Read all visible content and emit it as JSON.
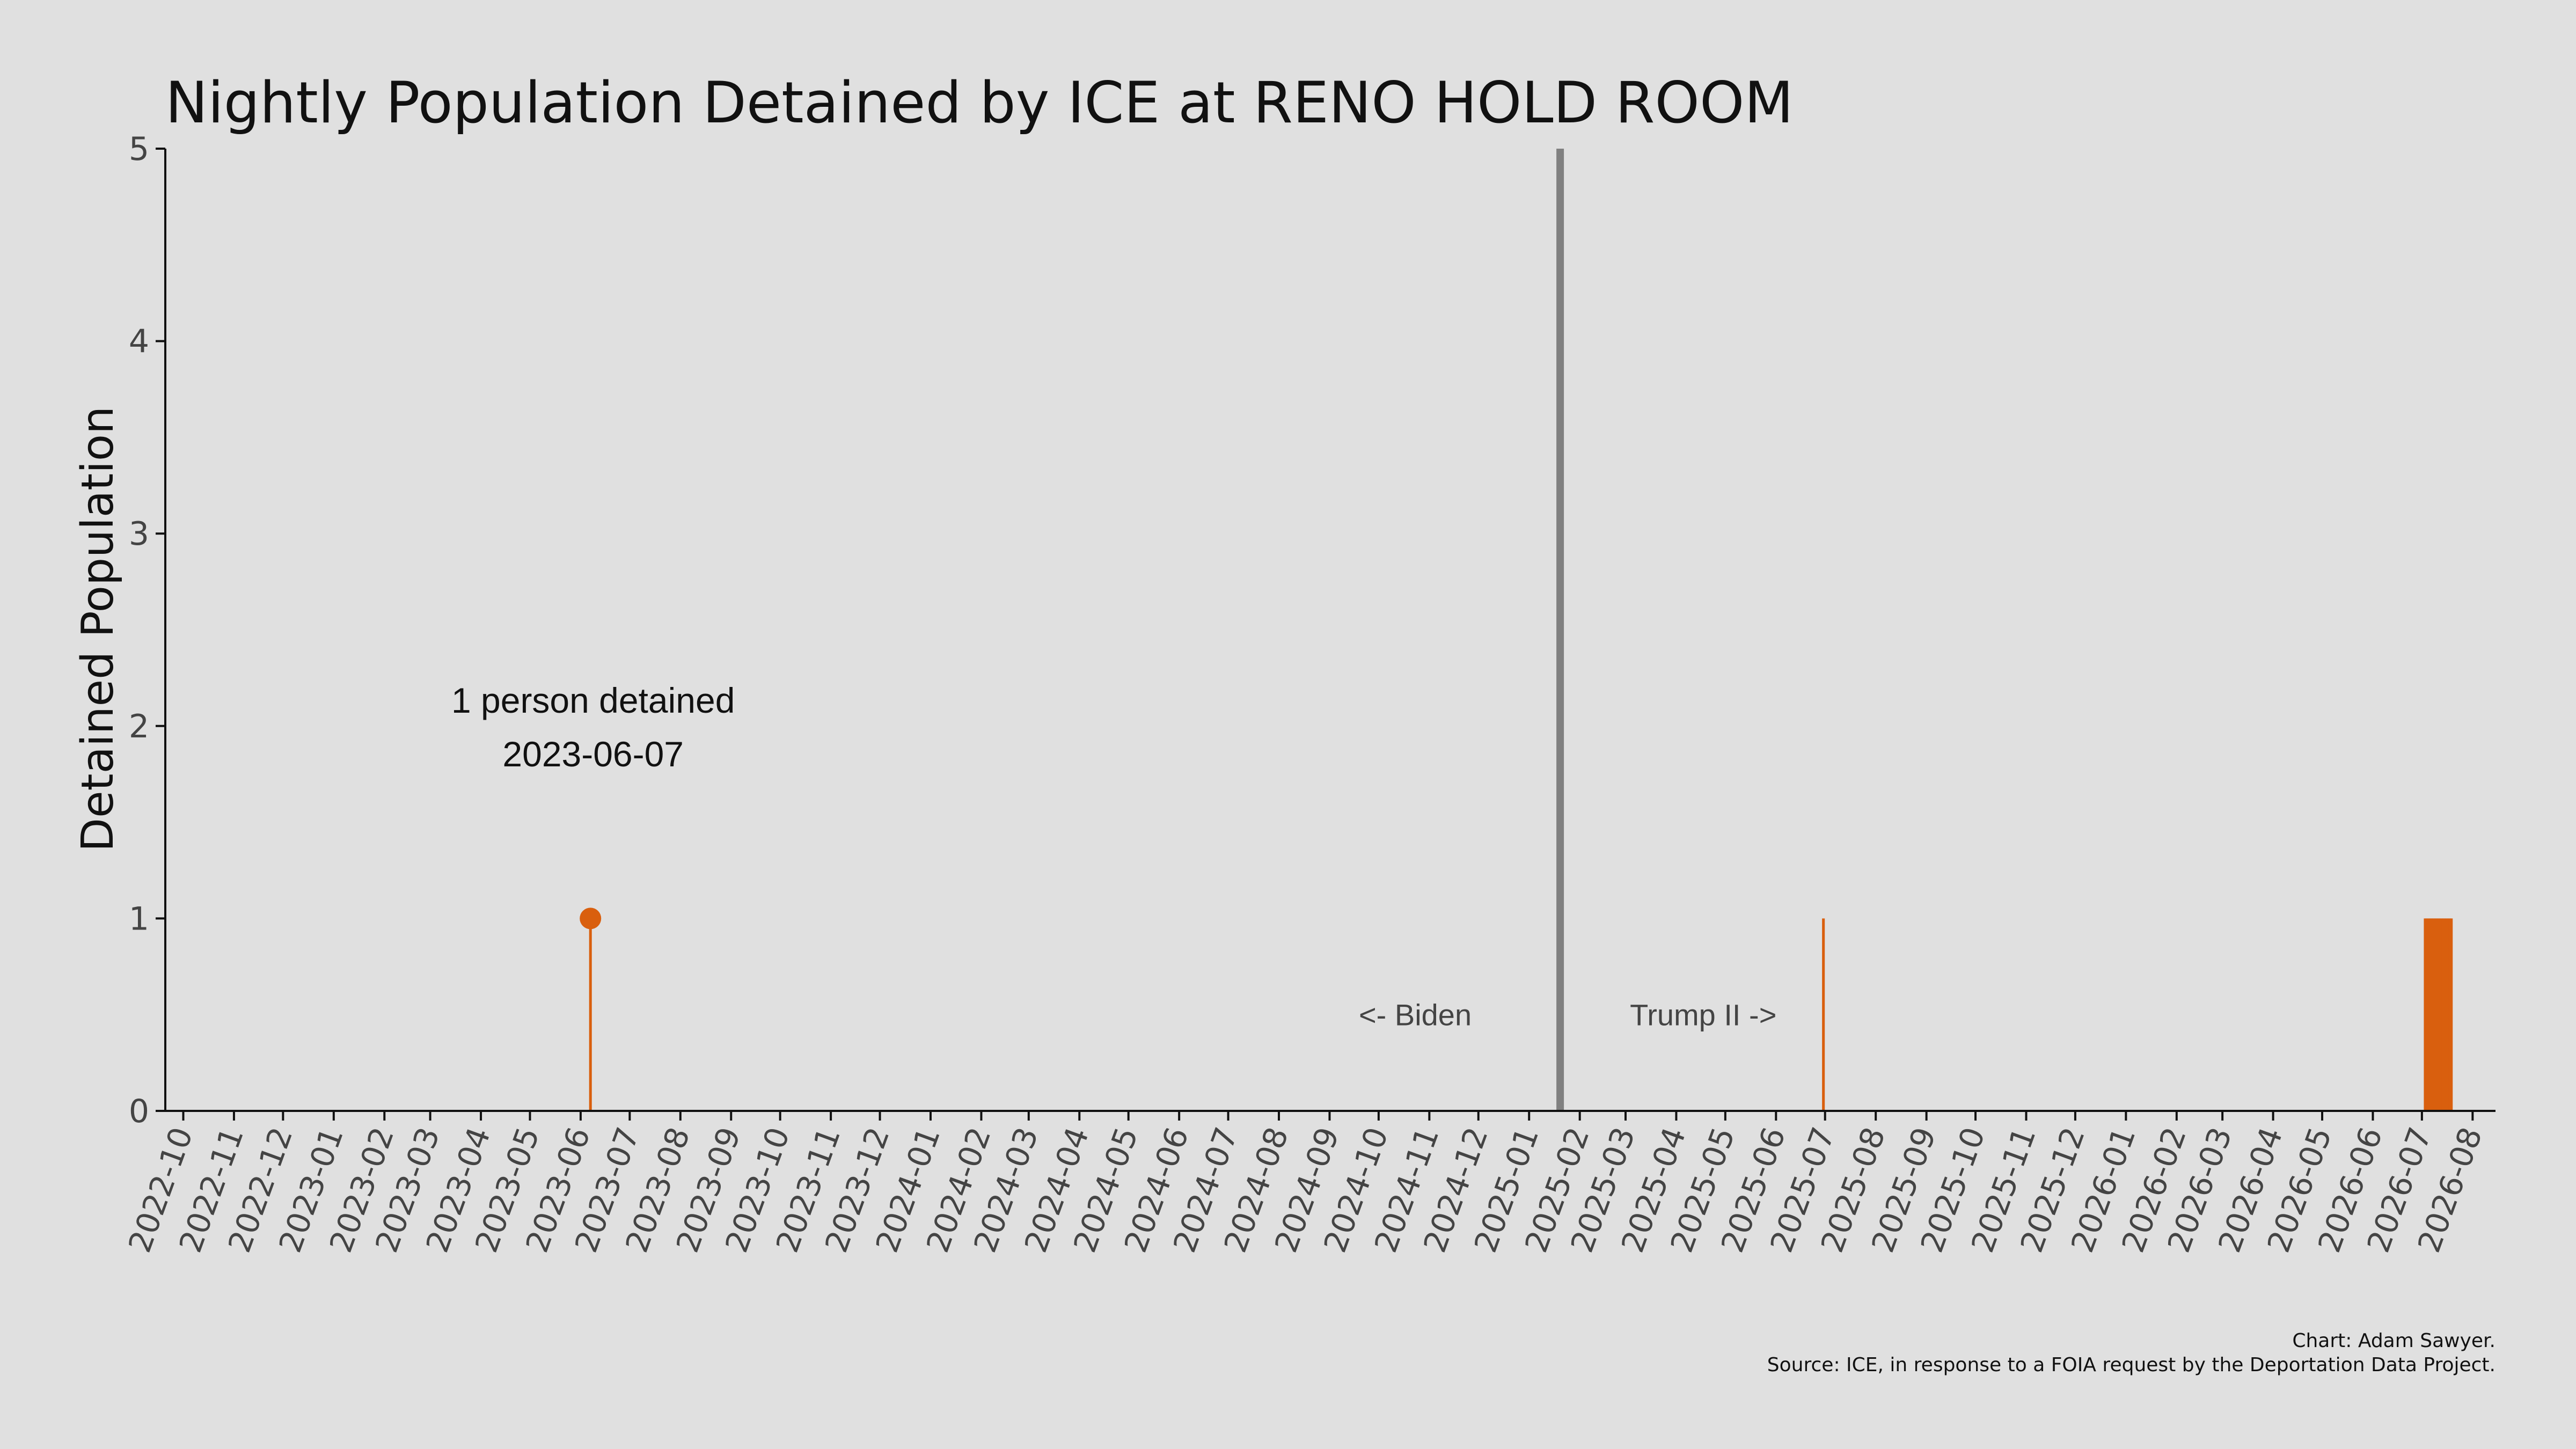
{
  "chart_data": {
    "type": "bar",
    "title": "Nightly Population Detained by ICE at RENO HOLD ROOM",
    "ylabel": "Detained Population",
    "xlabel": "",
    "ylim": [
      0,
      5
    ],
    "yticks": [
      "0",
      "1",
      "2",
      "3",
      "4",
      "5"
    ],
    "xlim": [
      "2022-09-20",
      "2026-08-15"
    ],
    "xticks": [
      "2022-10",
      "2022-11",
      "2022-12",
      "2023-01",
      "2023-02",
      "2023-03",
      "2023-04",
      "2023-05",
      "2023-06",
      "2023-07",
      "2023-08",
      "2023-09",
      "2023-10",
      "2023-11",
      "2023-12",
      "2024-01",
      "2024-02",
      "2024-03",
      "2024-04",
      "2024-05",
      "2024-06",
      "2024-07",
      "2024-08",
      "2024-09",
      "2024-10",
      "2024-11",
      "2024-12",
      "2025-01",
      "2025-02",
      "2025-03",
      "2025-04",
      "2025-05",
      "2025-06",
      "2025-07",
      "2025-08",
      "2025-09",
      "2025-10",
      "2025-11",
      "2025-12",
      "2026-01",
      "2026-02",
      "2026-03",
      "2026-04",
      "2026-05",
      "2026-06",
      "2026-07",
      "2026-08"
    ],
    "series": [
      {
        "color": "#d95f0e",
        "points": [
          {
            "date": "2023-06-07",
            "value": 1
          },
          {
            "date": "2025-06-30",
            "value": 1
          },
          {
            "date": "2026-07-03",
            "value": 1
          },
          {
            "date": "2026-07-04",
            "value": 1
          },
          {
            "date": "2026-07-05",
            "value": 1
          },
          {
            "date": "2026-07-06",
            "value": 1
          },
          {
            "date": "2026-07-07",
            "value": 1
          },
          {
            "date": "2026-07-08",
            "value": 1
          },
          {
            "date": "2026-07-09",
            "value": 1
          },
          {
            "date": "2026-07-10",
            "value": 1
          },
          {
            "date": "2026-07-11",
            "value": 1
          },
          {
            "date": "2026-07-12",
            "value": 1
          },
          {
            "date": "2026-07-13",
            "value": 1
          },
          {
            "date": "2026-07-14",
            "value": 1
          },
          {
            "date": "2026-07-15",
            "value": 1
          },
          {
            "date": "2026-07-16",
            "value": 1
          },
          {
            "date": "2026-07-17",
            "value": 1
          },
          {
            "date": "2026-07-18",
            "value": 1
          },
          {
            "date": "2026-07-19",
            "value": 1
          }
        ]
      }
    ],
    "highlight": {
      "date": "2023-06-07",
      "value": 1,
      "label_line1": "1 person detained",
      "label_line2": "2023-06-07"
    },
    "divider": {
      "date": "2025-01-20",
      "color": "#808080",
      "left_label": "<- Biden",
      "right_label": "Trump II ->"
    },
    "credits": {
      "line1": "Chart: Adam Sawyer.",
      "line2": "Source: ICE, in response to a FOIA request by the Deportation Data Project."
    },
    "grid": false,
    "legend": "none"
  }
}
